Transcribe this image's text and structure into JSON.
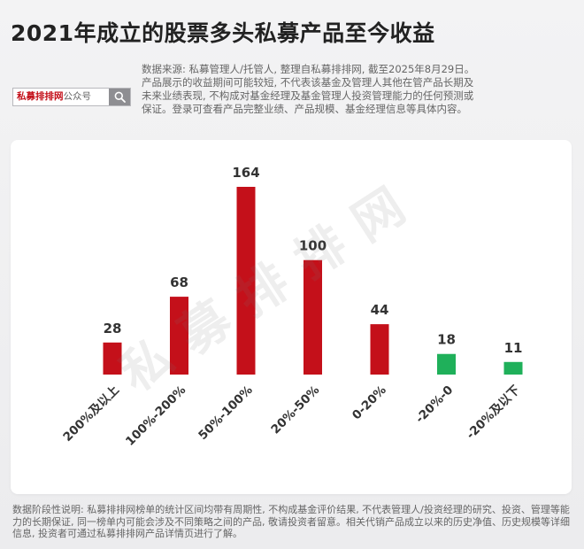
{
  "title": "2021年成立的股票多头私募产品至今收益",
  "search_box": {
    "brand_highlight": "私募排排网",
    "brand_suffix": "公众号",
    "icon": "search-icon"
  },
  "source_note": "数据来源: 私募管理人/托管人, 整理自私募排排网, 截至2025年8月29日。产品展示的收益期间可能较短, 不代表该基金及管理人其他在管产品长期及未来业绩表现, 不构成对基金经理及基金管理人投资管理能力的任何预测或保证。登录可查看产品完整业绩、产品规模、基金经理信息等具体内容。",
  "watermark": "私募排排网",
  "colors": {
    "positive": "#c4101a",
    "negative": "#1fb05a",
    "label": "#333333"
  },
  "chart_data": {
    "type": "bar",
    "title": "",
    "xlabel": "",
    "ylabel": "",
    "categories": [
      "200%及以上",
      "100%-200%",
      "50%-100%",
      "20%-50%",
      "0-20%",
      "-20%-0",
      "-20%及以下"
    ],
    "values": [
      28,
      68,
      164,
      100,
      44,
      18,
      11
    ],
    "bar_colors": [
      "#c4101a",
      "#c4101a",
      "#c4101a",
      "#c4101a",
      "#c4101a",
      "#1fb05a",
      "#1fb05a"
    ],
    "ylim": [
      0,
      164
    ],
    "grid": false,
    "legend": "none"
  },
  "footnote": "数据阶段性说明: 私募排排网榜单的统计区间均带有周期性, 不构成基金评价结果, 不代表管理人/投资经理的研究、投资、管理等能力的长期保证, 同一榜单内可能会涉及不同策略之间的产品, 敬请投资者留意。相关代销产品成立以来的历史净值、历史规模等详细信息, 投资者可通过私募排排网产品详情页进行了解。"
}
